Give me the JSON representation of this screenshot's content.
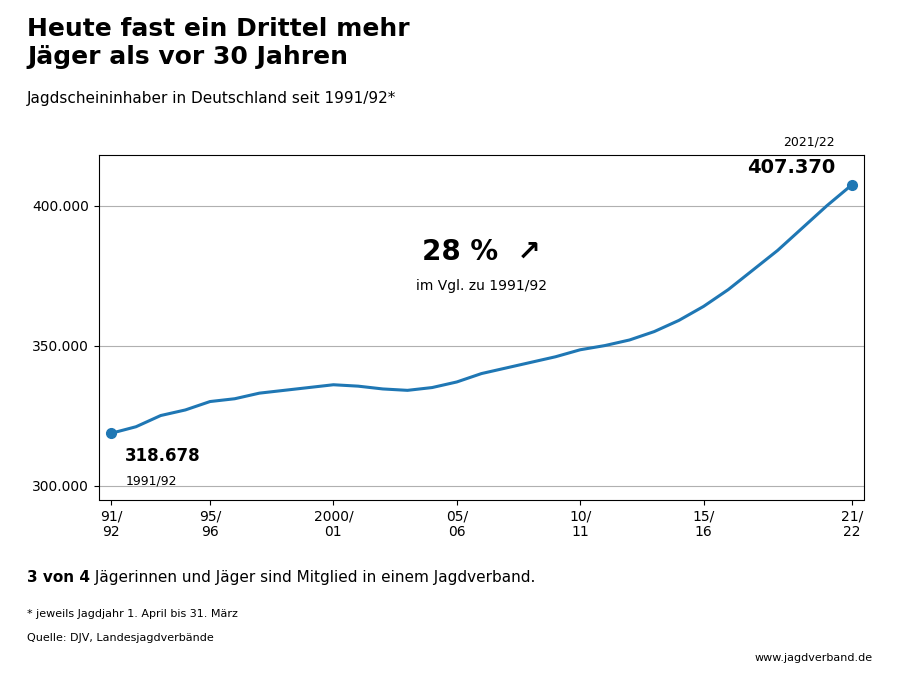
{
  "chart_data": {
    "type": "line",
    "title": "Heute fast ein Drittel mehr\nJäger als vor 30 Jahren",
    "subtitle": "Jagdscheininhaber in Deutschland seit 1991/92*",
    "categories": [
      "91/\n92",
      null,
      null,
      null,
      "95/\n96",
      null,
      null,
      null,
      null,
      "2000/\n01",
      null,
      null,
      null,
      null,
      "05/\n06",
      null,
      null,
      null,
      null,
      "10/\n11",
      null,
      null,
      null,
      null,
      "15/\n16",
      null,
      null,
      null,
      null,
      null,
      "21/\n22"
    ],
    "values": [
      318678,
      321000,
      325000,
      327000,
      330000,
      331000,
      333000,
      334000,
      335000,
      336000,
      335500,
      334500,
      334000,
      335000,
      337000,
      340000,
      342000,
      344000,
      346000,
      348500,
      350000,
      352000,
      355000,
      359000,
      364000,
      370000,
      377000,
      384000,
      392000,
      400000,
      407370
    ],
    "value_labels": [
      "318.678",
      null,
      null,
      null,
      null,
      null,
      null,
      null,
      null,
      null,
      null,
      null,
      null,
      null,
      null,
      null,
      null,
      null,
      null,
      null,
      null,
      null,
      null,
      null,
      null,
      null,
      null,
      null,
      null,
      null,
      "407.370"
    ],
    "ylim": [
      295000,
      418000
    ],
    "yticks": [
      {
        "value": 300000,
        "label": "300.000"
      },
      {
        "value": 350000,
        "label": "350.000"
      },
      {
        "value": 400000,
        "label": "400.000"
      }
    ],
    "grid": true,
    "annotations": [
      "1991/92",
      "2021/22",
      "28 %  ↗",
      "im Vgl. zu 1991/92"
    ],
    "footer": [
      "3 von 4",
      " Jägerinnen und Jäger sind Mitglied in einem Jagdverband."
    ],
    "footnote": "* jeweils Jagdjahr 1. April bis 31. März",
    "source": "Quelle: DJV, Landesjagdverbände",
    "website": "www.jagdverband.de"
  }
}
